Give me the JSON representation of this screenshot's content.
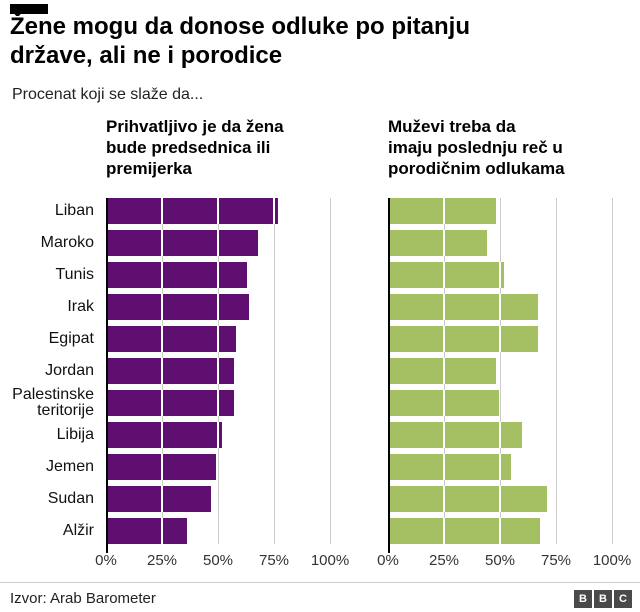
{
  "header": {
    "title": "Žene mogu da donose odluke po pitanju\ndržave, ali ne i porodice",
    "subtitle": "Procenat koji se slaže da..."
  },
  "charts": {
    "left_title": "Prihvatljivo je da žena\nbude predsednica ili\npremijerka",
    "right_title": "Muževi treba da\nimaju poslednju reč u\nporodičnim odlukama"
  },
  "chart_data": [
    {
      "type": "bar",
      "orientation": "horizontal",
      "title": "Prihvatljivo je da žena bude predsednica ili premijerka",
      "categories": [
        "Liban",
        "Maroko",
        "Tunis",
        "Irak",
        "Egipat",
        "Jordan",
        "Palestinske teritorije",
        "Libija",
        "Jemen",
        "Sudan",
        "Alžir"
      ],
      "values": [
        77,
        68,
        63,
        64,
        58,
        57,
        57,
        52,
        49,
        47,
        36
      ],
      "xlim": [
        0,
        100
      ],
      "x_ticks": [
        "0%",
        "25%",
        "50%",
        "75%",
        "100%"
      ],
      "gridlines": [
        25,
        50,
        75,
        100
      ],
      "bar_color": "#5e0f70",
      "gridline_color": "#cccccc",
      "legend": "none"
    },
    {
      "type": "bar",
      "orientation": "horizontal",
      "title": "Muževi treba da imaju poslednju reč u porodičnim odlukama",
      "categories": [
        "Liban",
        "Maroko",
        "Tunis",
        "Irak",
        "Egipat",
        "Jordan",
        "Palestinske teritorije",
        "Libija",
        "Jemen",
        "Sudan",
        "Alžir"
      ],
      "values": [
        48,
        44,
        52,
        67,
        67,
        48,
        50,
        60,
        55,
        71,
        68
      ],
      "xlim": [
        0,
        100
      ],
      "x_ticks": [
        "0%",
        "25%",
        "50%",
        "75%",
        "100%"
      ],
      "gridlines": [
        25,
        50,
        75,
        100
      ],
      "bar_color": "#a5c063",
      "gridline_color": "#cccccc",
      "legend": "none"
    }
  ],
  "footer": {
    "source": "Izvor: Arab Barometer",
    "logo_letters": [
      "B",
      "B",
      "C"
    ]
  }
}
